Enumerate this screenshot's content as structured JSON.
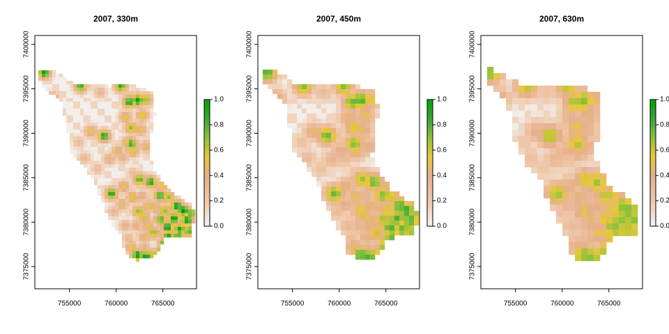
{
  "chart_data": [
    {
      "type": "heatmap",
      "title": "2007, 330m",
      "xlabel": "",
      "ylabel": "",
      "xlim": [
        751300,
        768600
      ],
      "ylim": [
        7372500,
        7401000
      ],
      "x_ticks": [
        755000,
        760000,
        765000
      ],
      "x_tick_labels": [
        "755000",
        "760000",
        "765000"
      ],
      "y_ticks": [
        7375000,
        7380000,
        7385000,
        7390000,
        7395000,
        7400000
      ],
      "y_tick_labels": [
        "7375000",
        "7380000",
        "7385000",
        "7390000",
        "7395000",
        "7400000"
      ],
      "legend": {
        "min": 0.0,
        "max": 1.0,
        "ticks": [
          0.0,
          0.2,
          0.4,
          0.6,
          0.8,
          1.0
        ],
        "tick_labels": [
          "0.0",
          "0.2",
          "0.4",
          "0.6",
          "0.8",
          "1.0"
        ]
      }
    },
    {
      "type": "heatmap",
      "title": "2007, 450m",
      "xlabel": "",
      "ylabel": "",
      "xlim": [
        751300,
        768600
      ],
      "ylim": [
        7372500,
        7401000
      ],
      "x_ticks": [
        755000,
        760000,
        765000
      ],
      "x_tick_labels": [
        "755000",
        "760000",
        "765000"
      ],
      "y_ticks": [
        7375000,
        7380000,
        7385000,
        7390000,
        7395000,
        7400000
      ],
      "y_tick_labels": [
        "7375000",
        "7380000",
        "7385000",
        "7390000",
        "7395000",
        "7400000"
      ],
      "legend": {
        "min": 0.0,
        "max": 1.0,
        "ticks": [
          0.0,
          0.2,
          0.4,
          0.6,
          0.8,
          1.0
        ],
        "tick_labels": [
          "0.0",
          "0.2",
          "0.4",
          "0.6",
          "0.8",
          "1.0"
        ]
      }
    },
    {
      "type": "heatmap",
      "title": "2007, 630m",
      "xlabel": "",
      "ylabel": "",
      "xlim": [
        751300,
        768600
      ],
      "ylim": [
        7372500,
        7401000
      ],
      "x_ticks": [
        755000,
        760000,
        765000
      ],
      "x_tick_labels": [
        "755000",
        "760000",
        "765000"
      ],
      "y_ticks": [
        7375000,
        7380000,
        7385000,
        7390000,
        7395000,
        7400000
      ],
      "y_tick_labels": [
        "7375000",
        "7380000",
        "7385000",
        "7390000",
        "7395000",
        "7400000"
      ],
      "legend": {
        "min": 0.0,
        "max": 1.0,
        "ticks": [
          0.0,
          0.2,
          0.4,
          0.6,
          0.8,
          1.0
        ],
        "tick_labels": [
          "0.0",
          "0.2",
          "0.4",
          "0.6",
          "0.8",
          "1.0"
        ]
      }
    }
  ],
  "region": {
    "outline": [
      [
        752000,
        7397200
      ],
      [
        753500,
        7397000
      ],
      [
        754800,
        7396000
      ],
      [
        755800,
        7395400
      ],
      [
        757200,
        7395500
      ],
      [
        759500,
        7395300
      ],
      [
        761200,
        7395600
      ],
      [
        763000,
        7395000
      ],
      [
        764000,
        7394500
      ],
      [
        764200,
        7392000
      ],
      [
        763800,
        7390000
      ],
      [
        763500,
        7387500
      ],
      [
        764300,
        7385500
      ],
      [
        765500,
        7383800
      ],
      [
        766800,
        7382800
      ],
      [
        768200,
        7381800
      ],
      [
        768400,
        7380300
      ],
      [
        768000,
        7378500
      ],
      [
        765300,
        7378200
      ],
      [
        764700,
        7377000
      ],
      [
        763800,
        7375900
      ],
      [
        762000,
        7375700
      ],
      [
        760900,
        7376500
      ],
      [
        760500,
        7378500
      ],
      [
        759500,
        7379800
      ],
      [
        758800,
        7381500
      ],
      [
        758200,
        7383000
      ],
      [
        757500,
        7385000
      ],
      [
        756700,
        7386000
      ],
      [
        756000,
        7386900
      ],
      [
        755200,
        7387900
      ],
      [
        754900,
        7389500
      ],
      [
        754500,
        7392000
      ],
      [
        754000,
        7393800
      ],
      [
        753000,
        7394500
      ],
      [
        751900,
        7395600
      ],
      [
        751600,
        7397000
      ]
    ],
    "background_value": 0.02,
    "hotspots": [
      [
        752300,
        7396800,
        0.95
      ],
      [
        753200,
        7393900,
        0.6
      ],
      [
        756200,
        7395300,
        0.85
      ],
      [
        758300,
        7394600,
        0.35
      ],
      [
        760500,
        7395300,
        0.85
      ],
      [
        761500,
        7394000,
        0.45
      ],
      [
        761400,
        7393500,
        0.9
      ],
      [
        762300,
        7393700,
        0.95
      ],
      [
        763200,
        7393800,
        0.7
      ],
      [
        762800,
        7392000,
        0.6
      ],
      [
        761000,
        7391800,
        0.55
      ],
      [
        761600,
        7390600,
        0.7
      ],
      [
        762600,
        7390400,
        0.55
      ],
      [
        757300,
        7390200,
        0.55
      ],
      [
        758700,
        7389700,
        0.9
      ],
      [
        761200,
        7389000,
        0.5
      ],
      [
        761600,
        7388800,
        0.85
      ],
      [
        756000,
        7389000,
        0.3
      ],
      [
        760200,
        7388000,
        0.5
      ],
      [
        761800,
        7388000,
        0.6
      ],
      [
        763200,
        7388500,
        0.5
      ],
      [
        756600,
        7387200,
        0.35
      ],
      [
        759300,
        7387100,
        0.45
      ],
      [
        760700,
        7387300,
        0.4
      ],
      [
        758000,
        7386000,
        0.3
      ],
      [
        761800,
        7385500,
        0.3
      ],
      [
        762500,
        7384800,
        0.8
      ],
      [
        763700,
        7384500,
        0.9
      ],
      [
        765000,
        7384100,
        0.55
      ],
      [
        760800,
        7384000,
        0.55
      ],
      [
        759500,
        7383200,
        0.9
      ],
      [
        761800,
        7382800,
        0.6
      ],
      [
        762800,
        7382900,
        0.45
      ],
      [
        764700,
        7383000,
        0.85
      ],
      [
        765600,
        7382800,
        0.7
      ],
      [
        760600,
        7382000,
        0.5
      ],
      [
        759800,
        7381200,
        0.35
      ],
      [
        762400,
        7381200,
        0.7
      ],
      [
        763500,
        7381800,
        0.55
      ],
      [
        764300,
        7381600,
        0.5
      ],
      [
        765200,
        7381300,
        0.7
      ],
      [
        766500,
        7381800,
        0.95
      ],
      [
        767200,
        7381300,
        1.0
      ],
      [
        768000,
        7381000,
        0.8
      ],
      [
        763000,
        7380500,
        0.6
      ],
      [
        764800,
        7380300,
        0.8
      ],
      [
        766200,
        7380400,
        0.95
      ],
      [
        767600,
        7380200,
        0.95
      ],
      [
        761000,
        7379600,
        0.4
      ],
      [
        762200,
        7379600,
        0.45
      ],
      [
        763400,
        7379600,
        0.55
      ],
      [
        765500,
        7379400,
        0.95
      ],
      [
        766800,
        7379200,
        0.9
      ],
      [
        767800,
        7379000,
        0.8
      ],
      [
        761300,
        7378200,
        0.35
      ],
      [
        763000,
        7378300,
        0.5
      ],
      [
        764000,
        7378800,
        0.7
      ],
      [
        765600,
        7378400,
        0.9
      ],
      [
        766600,
        7378300,
        0.85
      ],
      [
        761600,
        7377200,
        0.55
      ],
      [
        763000,
        7377000,
        0.45
      ],
      [
        765200,
        7377600,
        0.85
      ],
      [
        765000,
        7376700,
        1.0
      ],
      [
        762300,
        7376300,
        0.95
      ],
      [
        763200,
        7376100,
        0.95
      ],
      [
        764000,
        7376300,
        0.7
      ]
    ]
  }
}
